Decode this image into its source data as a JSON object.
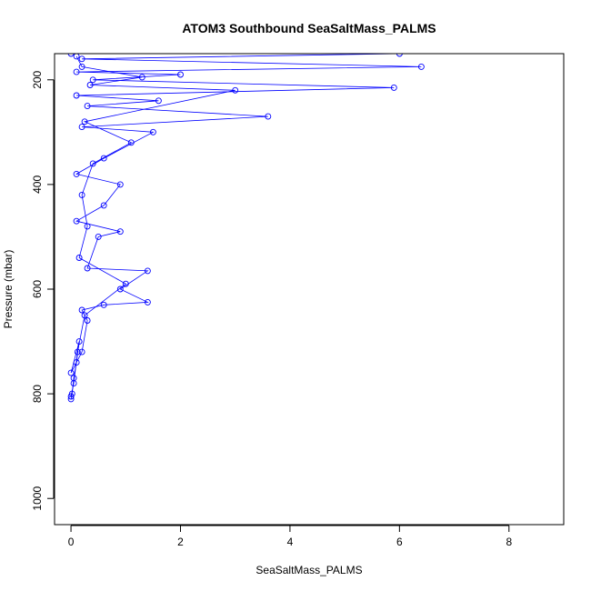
{
  "chart_data": {
    "type": "scatter",
    "title": "ATOM3 Southbound SeaSaltMass_PALMS",
    "xlabel": "SeaSaltMass_PALMS",
    "ylabel": "Pressure (mbar)",
    "xlim": [
      -0.3,
      9.0
    ],
    "ylim": [
      1050,
      150
    ],
    "y_reversed": true,
    "grid": false,
    "legend": "none",
    "x_ticks": [
      0,
      2,
      4,
      6,
      8
    ],
    "y_ticks": [
      200,
      400,
      600,
      800,
      1000
    ],
    "color": "#0000ff",
    "series": [
      {
        "values": [
          [
            0.0,
            810
          ],
          [
            0.02,
            800
          ],
          [
            0.05,
            770
          ],
          [
            0.1,
            740
          ],
          [
            0.15,
            700
          ],
          [
            0.0,
            760
          ],
          [
            0.2,
            720
          ],
          [
            0.3,
            660
          ],
          [
            0.2,
            640
          ],
          [
            0.6,
            630
          ],
          [
            1.4,
            625
          ],
          [
            0.9,
            600
          ],
          [
            1.4,
            565
          ],
          [
            0.3,
            560
          ],
          [
            0.5,
            500
          ],
          [
            0.9,
            490
          ],
          [
            0.1,
            470
          ],
          [
            0.6,
            440
          ],
          [
            0.9,
            400
          ],
          [
            0.1,
            380
          ],
          [
            0.6,
            350
          ],
          [
            1.5,
            300
          ],
          [
            0.2,
            290
          ],
          [
            3.6,
            270
          ],
          [
            0.3,
            250
          ],
          [
            1.6,
            240
          ],
          [
            0.1,
            230
          ],
          [
            5.9,
            215
          ],
          [
            0.4,
            200
          ],
          [
            2.0,
            190
          ],
          [
            0.1,
            185
          ],
          [
            6.4,
            175
          ],
          [
            0.2,
            160
          ],
          [
            6.0,
            150
          ],
          [
            0.0,
            150
          ]
        ]
      },
      {
        "values": [
          [
            0.0,
            805
          ],
          [
            0.05,
            780
          ],
          [
            0.12,
            720
          ],
          [
            0.25,
            650
          ],
          [
            1.0,
            590
          ],
          [
            0.15,
            540
          ],
          [
            0.3,
            480
          ],
          [
            0.2,
            420
          ],
          [
            0.4,
            360
          ],
          [
            1.1,
            320
          ],
          [
            0.25,
            280
          ],
          [
            3.0,
            220
          ],
          [
            0.35,
            210
          ],
          [
            1.3,
            195
          ],
          [
            0.2,
            175
          ],
          [
            0.1,
            155
          ]
        ]
      }
    ]
  }
}
